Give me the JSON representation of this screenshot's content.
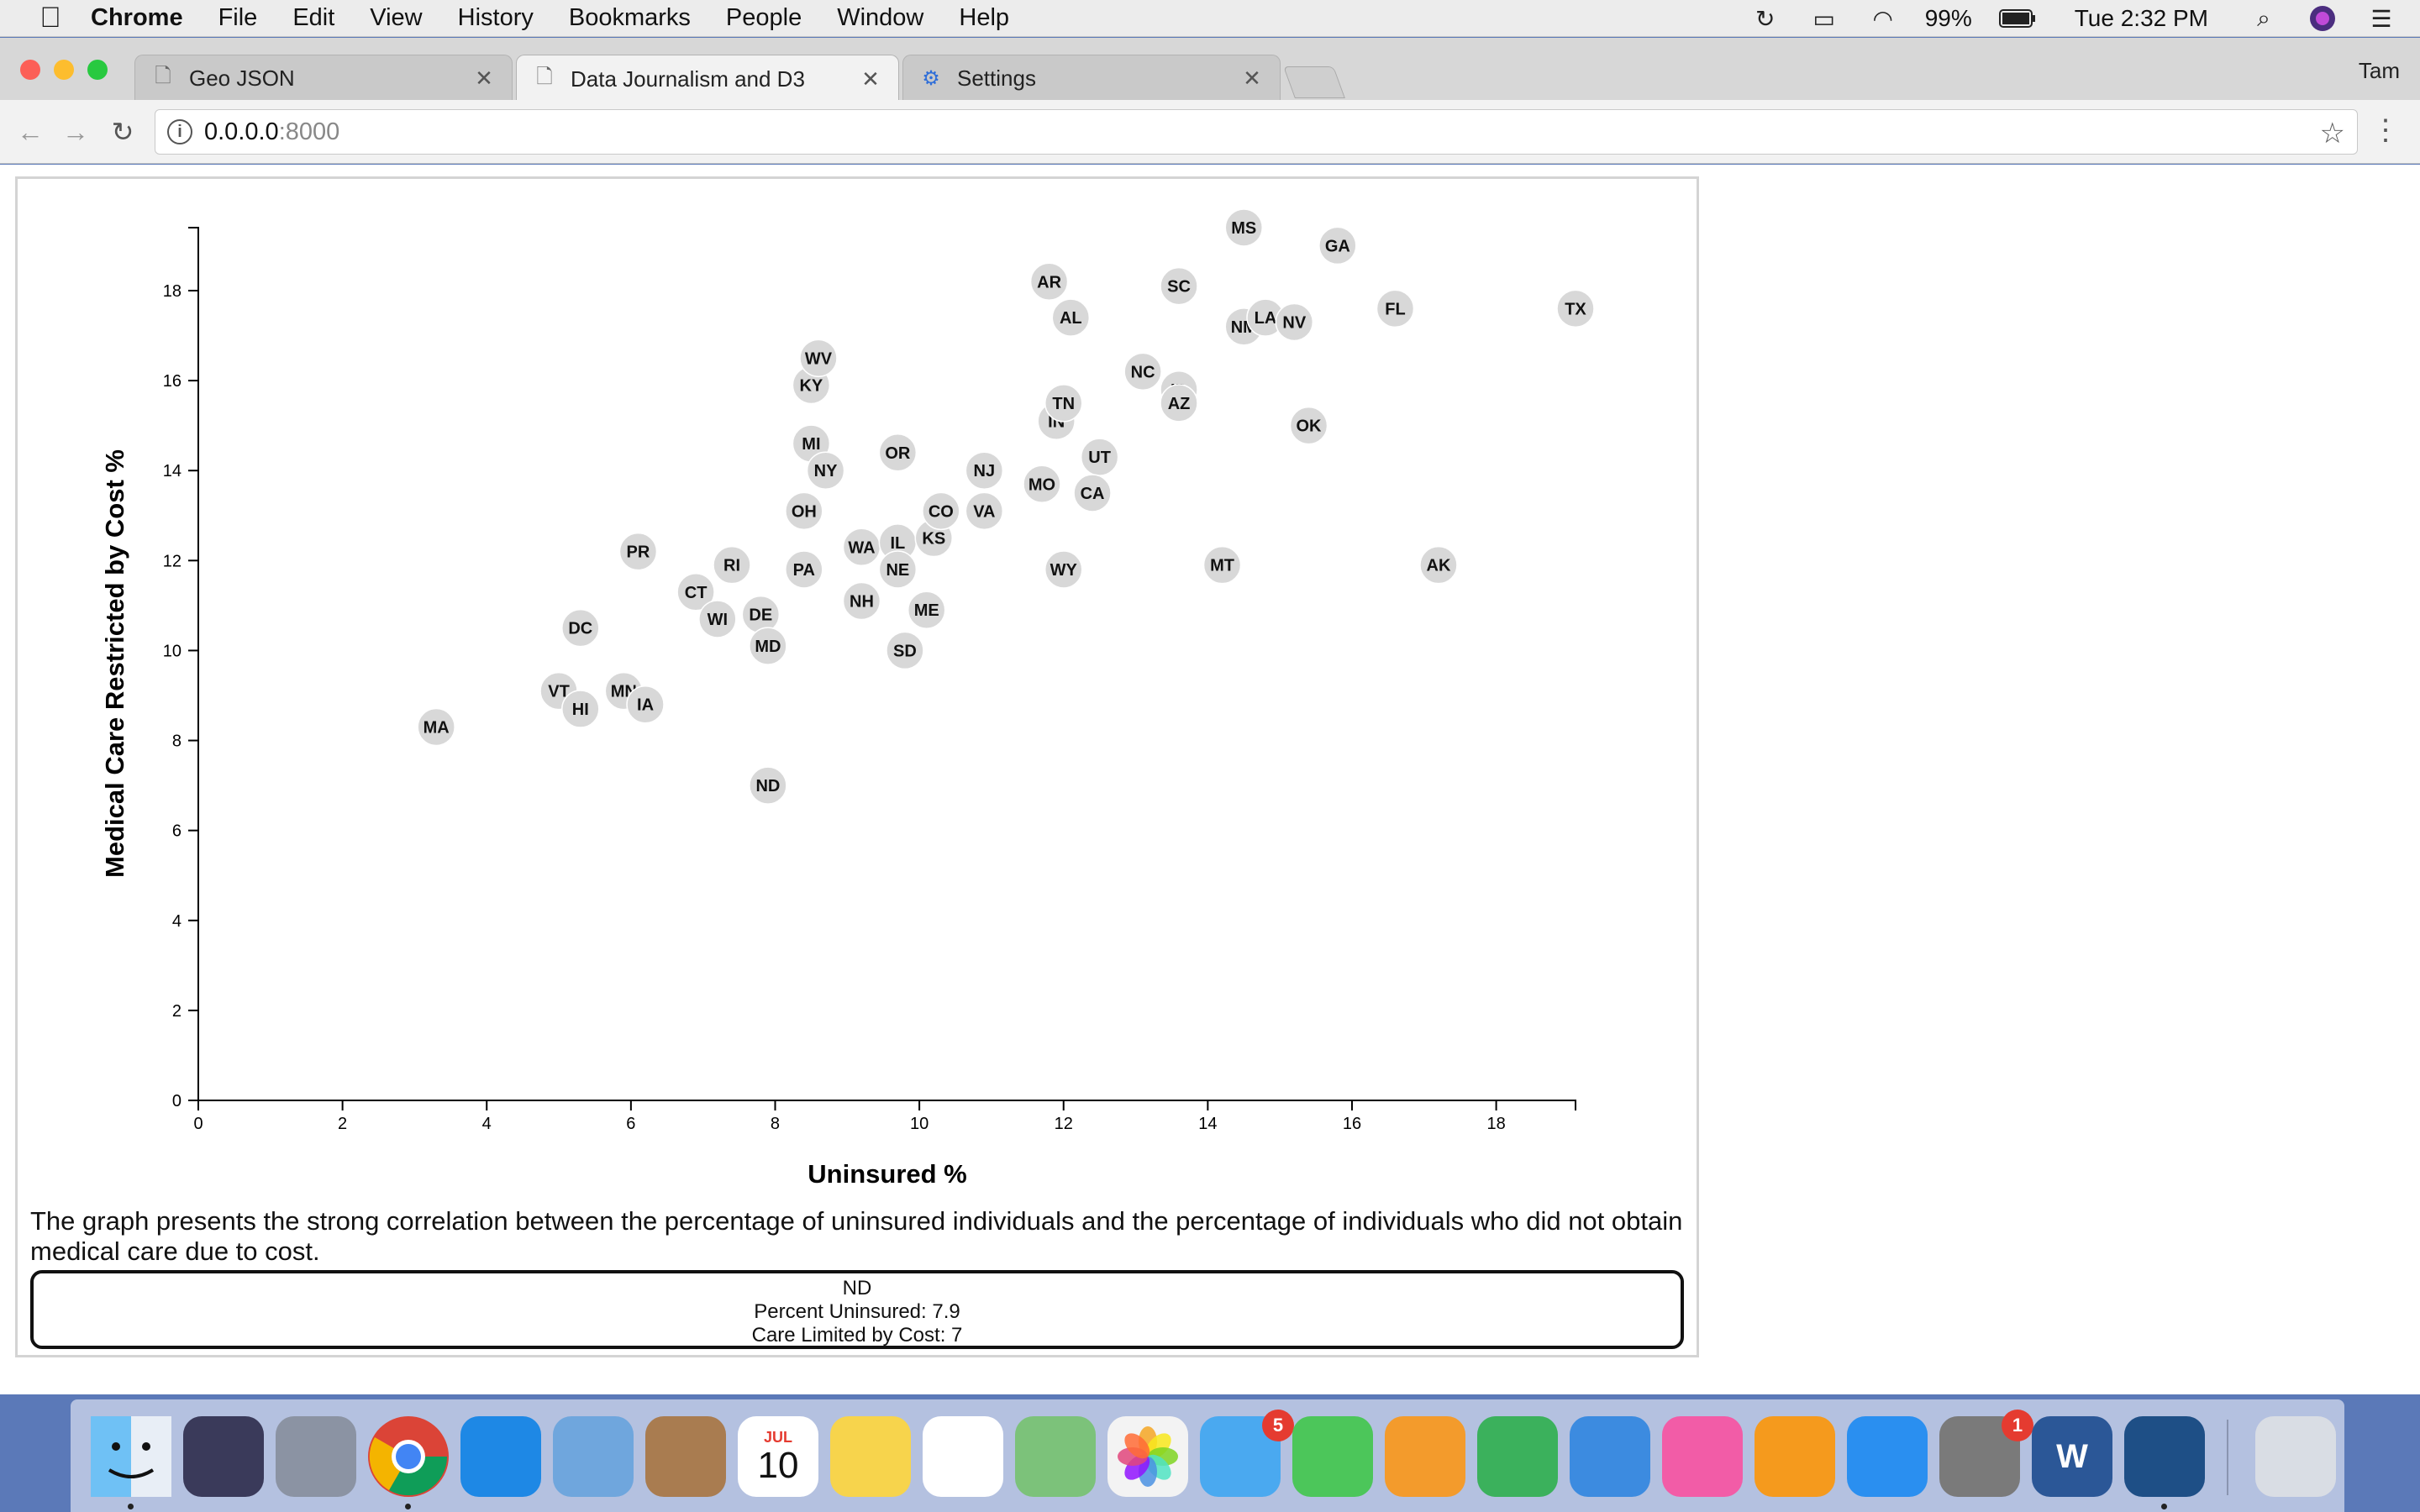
{
  "menubar": {
    "app": "Chrome",
    "items": [
      "File",
      "Edit",
      "View",
      "History",
      "Bookmarks",
      "People",
      "Window",
      "Help"
    ],
    "battery": "99%",
    "clock": "Tue 2:32 PM"
  },
  "tabs": [
    {
      "label": "Geo JSON",
      "icon": "page-icon",
      "active": false
    },
    {
      "label": "Data Journalism and D3",
      "icon": "page-icon",
      "active": true
    },
    {
      "label": "Settings",
      "icon": "gear-icon",
      "active": false
    }
  ],
  "profile": "Tam",
  "address": {
    "host": "0.0.0.0",
    "port": ":8000"
  },
  "chart_data": {
    "type": "scatter",
    "title": "",
    "xlabel": "Uninsured %",
    "ylabel": "Medical Care Restricted by Cost %",
    "xlim": [
      0,
      19.1
    ],
    "ylim": [
      0,
      19.4
    ],
    "xticks": [
      0,
      2,
      4,
      6,
      8,
      10,
      12,
      14,
      16,
      18
    ],
    "yticks": [
      0,
      2,
      4,
      6,
      8,
      10,
      12,
      14,
      16,
      18
    ],
    "grid": false,
    "points": [
      {
        "label": "MA",
        "x": 3.3,
        "y": 8.3
      },
      {
        "label": "VT",
        "x": 5.0,
        "y": 9.1
      },
      {
        "label": "HI",
        "x": 5.3,
        "y": 8.7
      },
      {
        "label": "MN",
        "x": 5.9,
        "y": 9.1
      },
      {
        "label": "IA",
        "x": 6.2,
        "y": 8.8
      },
      {
        "label": "DC",
        "x": 5.3,
        "y": 10.5
      },
      {
        "label": "PR",
        "x": 6.1,
        "y": 12.2
      },
      {
        "label": "CT",
        "x": 6.9,
        "y": 11.3
      },
      {
        "label": "RI",
        "x": 7.4,
        "y": 11.9
      },
      {
        "label": "WI",
        "x": 7.2,
        "y": 10.7
      },
      {
        "label": "DE",
        "x": 7.8,
        "y": 10.8
      },
      {
        "label": "MD",
        "x": 7.9,
        "y": 10.1
      },
      {
        "label": "ND",
        "x": 7.9,
        "y": 7.0
      },
      {
        "label": "PA",
        "x": 8.4,
        "y": 11.8
      },
      {
        "label": "OH",
        "x": 8.4,
        "y": 13.1
      },
      {
        "label": "MI",
        "x": 8.5,
        "y": 14.6
      },
      {
        "label": "NY",
        "x": 8.7,
        "y": 14.0
      },
      {
        "label": "KY",
        "x": 8.5,
        "y": 15.9
      },
      {
        "label": "WV",
        "x": 8.6,
        "y": 16.5
      },
      {
        "label": "WA",
        "x": 9.2,
        "y": 12.3
      },
      {
        "label": "NH",
        "x": 9.2,
        "y": 11.1
      },
      {
        "label": "OR",
        "x": 9.7,
        "y": 14.4
      },
      {
        "label": "IL",
        "x": 9.7,
        "y": 12.4
      },
      {
        "label": "NE",
        "x": 9.7,
        "y": 11.8
      },
      {
        "label": "SD",
        "x": 9.8,
        "y": 10.0
      },
      {
        "label": "ME",
        "x": 10.1,
        "y": 10.9
      },
      {
        "label": "KS",
        "x": 10.2,
        "y": 12.5
      },
      {
        "label": "CO",
        "x": 10.3,
        "y": 13.1
      },
      {
        "label": "VA",
        "x": 10.9,
        "y": 13.1
      },
      {
        "label": "NJ",
        "x": 10.9,
        "y": 14.0
      },
      {
        "label": "MO",
        "x": 11.7,
        "y": 13.7
      },
      {
        "label": "AR",
        "x": 11.8,
        "y": 18.2
      },
      {
        "label": "IN",
        "x": 11.9,
        "y": 15.1
      },
      {
        "label": "TN",
        "x": 12.0,
        "y": 15.5
      },
      {
        "label": "WY",
        "x": 12.0,
        "y": 11.8
      },
      {
        "label": "AL",
        "x": 12.1,
        "y": 17.4
      },
      {
        "label": "UT",
        "x": 12.5,
        "y": 14.3
      },
      {
        "label": "CA",
        "x": 12.4,
        "y": 13.5
      },
      {
        "label": "NC",
        "x": 13.1,
        "y": 16.2
      },
      {
        "label": "ID",
        "x": 13.6,
        "y": 15.8
      },
      {
        "label": "AZ",
        "x": 13.6,
        "y": 15.5
      },
      {
        "label": "SC",
        "x": 13.6,
        "y": 18.1
      },
      {
        "label": "MT",
        "x": 14.2,
        "y": 11.9
      },
      {
        "label": "MS",
        "x": 14.5,
        "y": 19.4
      },
      {
        "label": "NM",
        "x": 14.5,
        "y": 17.2
      },
      {
        "label": "LA",
        "x": 14.8,
        "y": 17.4
      },
      {
        "label": "NV",
        "x": 15.2,
        "y": 17.3
      },
      {
        "label": "OK",
        "x": 15.4,
        "y": 15.0
      },
      {
        "label": "GA",
        "x": 15.8,
        "y": 19.0
      },
      {
        "label": "FL",
        "x": 16.6,
        "y": 17.6
      },
      {
        "label": "AK",
        "x": 17.2,
        "y": 11.9
      },
      {
        "label": "TX",
        "x": 19.1,
        "y": 17.6
      }
    ]
  },
  "caption": "The graph presents the strong correlation between the percentage of uninsured individuals and the percentage of individuals who did not obtain medical care due to cost.",
  "tooltip": {
    "state": "ND",
    "line1": "Percent Uninsured: 7.9",
    "line2": "Care Limited by Cost: 7"
  },
  "dock": {
    "calendar_month": "JUL",
    "calendar_day": "10",
    "messages_badge": "5",
    "prefs_badge": "1",
    "word_letter": "W",
    "items": [
      {
        "name": "finder-icon",
        "color": "#3e8ee8"
      },
      {
        "name": "siri-icon",
        "color": "#3a3a5a"
      },
      {
        "name": "launchpad-icon",
        "color": "#8b93a3"
      },
      {
        "name": "chrome-icon",
        "color": "#db4437"
      },
      {
        "name": "safari-icon",
        "color": "#1e88e5"
      },
      {
        "name": "mail-icon",
        "color": "#6fa6dd"
      },
      {
        "name": "contacts-icon",
        "color": "#a97c50"
      },
      {
        "name": "calendar-icon",
        "color": "#ffffff"
      },
      {
        "name": "notes-icon",
        "color": "#f7d44c"
      },
      {
        "name": "reminders-icon",
        "color": "#ffffff"
      },
      {
        "name": "maps-icon",
        "color": "#7cc27a"
      },
      {
        "name": "photos-icon",
        "color": "#f3f3f3"
      },
      {
        "name": "messages-icon",
        "color": "#4aa9f0"
      },
      {
        "name": "facetime-icon",
        "color": "#4cc65a"
      },
      {
        "name": "pages-icon",
        "color": "#f39b2c"
      },
      {
        "name": "numbers-icon",
        "color": "#3bb15c"
      },
      {
        "name": "keynote-icon",
        "color": "#3c8be0"
      },
      {
        "name": "itunes-icon",
        "color": "#f25ca7"
      },
      {
        "name": "ibooks-icon",
        "color": "#f59a1d"
      },
      {
        "name": "app-store-icon",
        "color": "#2a8ff0"
      },
      {
        "name": "system-preferences-icon",
        "color": "#7a7a7a"
      },
      {
        "name": "word-icon",
        "color": "#2b5797"
      },
      {
        "name": "vscode-icon",
        "color": "#1e4f86"
      },
      {
        "name": "trash-icon",
        "color": "#d9dde4"
      }
    ]
  }
}
